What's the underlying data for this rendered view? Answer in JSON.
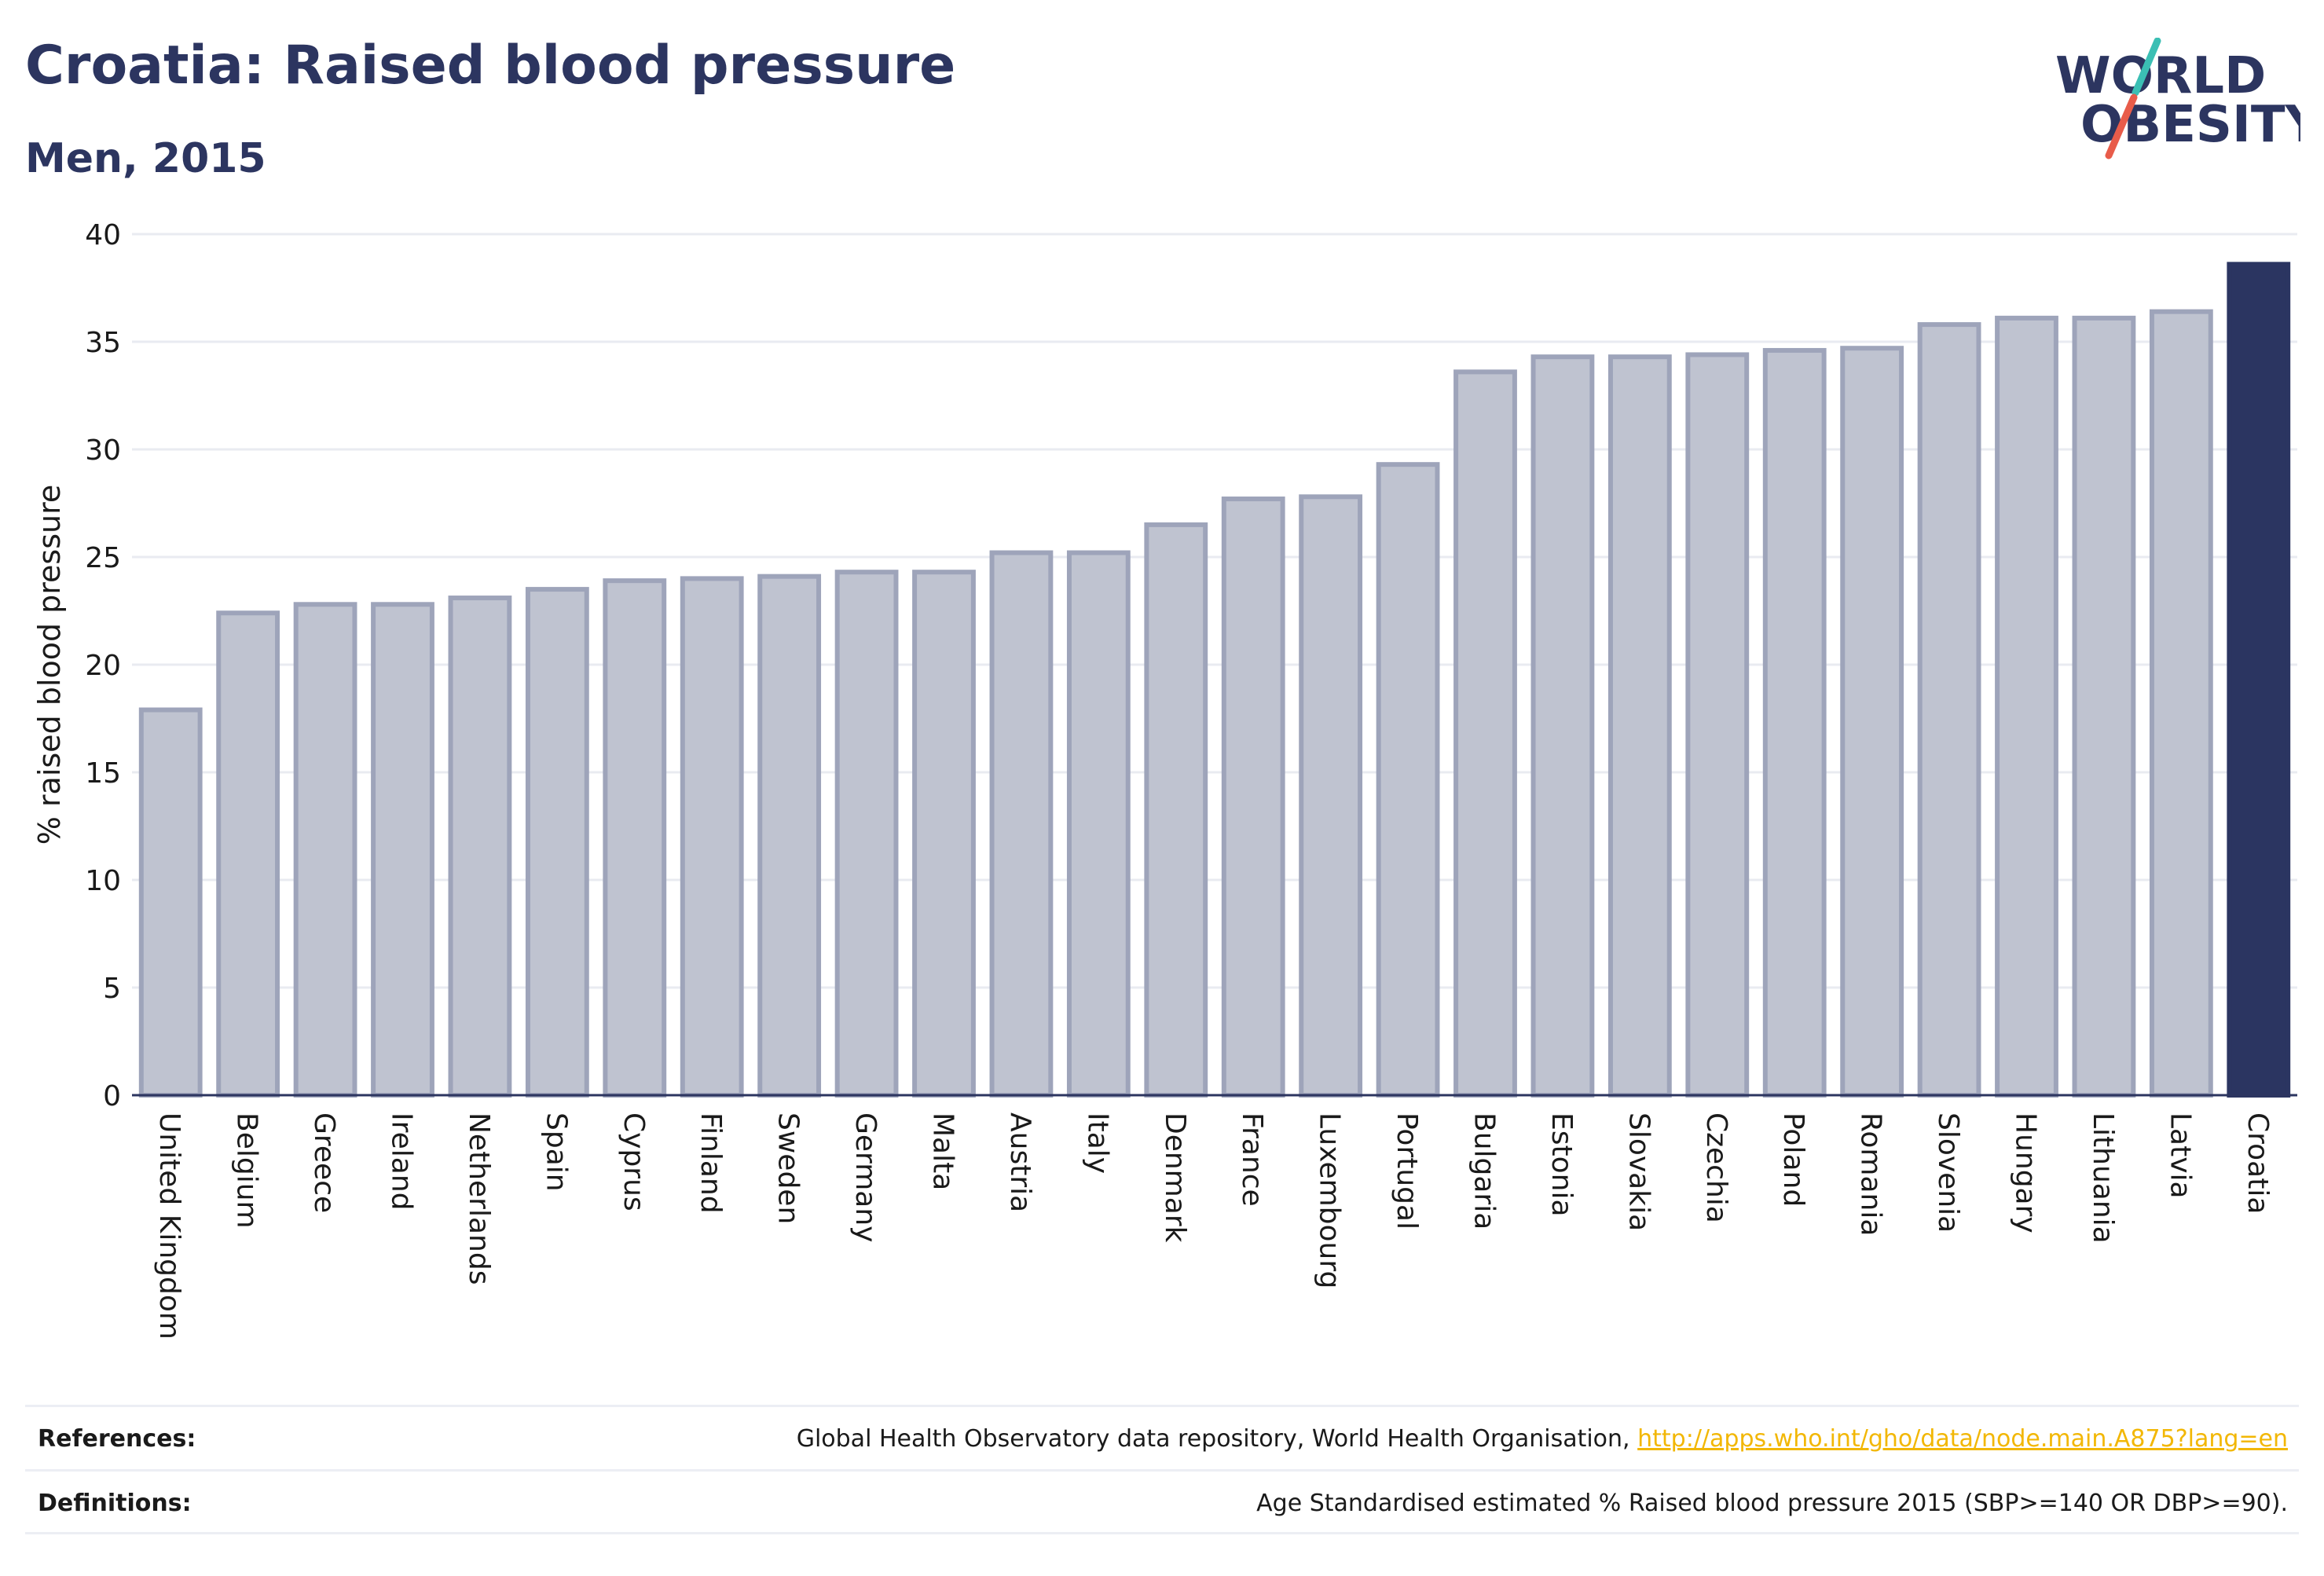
{
  "header": {
    "title": "Croatia: Raised blood pressure",
    "subtitle": "Men, 2015"
  },
  "logo": {
    "line1": "WORLD",
    "line2": "OBESITY"
  },
  "colors": {
    "bar_fill": "#bfc3d0",
    "bar_stroke": "#9ea4ba",
    "highlight": "#2b3561",
    "grid": "#e9ebf1",
    "axis": "#2c3560",
    "link": "#f2b705",
    "logo_teal": "#3bbfb4",
    "logo_red": "#e85c4a"
  },
  "chart_data": {
    "type": "bar",
    "title": "",
    "ylabel": "% raised blood pressure",
    "xlabel": "",
    "ylim": [
      0,
      40
    ],
    "yticks": [
      0,
      5,
      10,
      15,
      20,
      25,
      30,
      35,
      40
    ],
    "grid": true,
    "highlight_category": "Croatia",
    "categories": [
      "United Kingdom",
      "Belgium",
      "Greece",
      "Ireland",
      "Netherlands",
      "Spain",
      "Cyprus",
      "Finland",
      "Sweden",
      "Germany",
      "Malta",
      "Austria",
      "Italy",
      "Denmark",
      "France",
      "Luxembourg",
      "Portugal",
      "Bulgaria",
      "Estonia",
      "Slovakia",
      "Czechia",
      "Poland",
      "Romania",
      "Slovenia",
      "Hungary",
      "Lithuania",
      "Latvia",
      "Croatia"
    ],
    "values": [
      17.9,
      22.4,
      22.8,
      22.8,
      23.1,
      23.5,
      23.9,
      24.0,
      24.1,
      24.3,
      24.3,
      25.2,
      25.2,
      26.5,
      27.7,
      27.8,
      29.3,
      33.6,
      34.3,
      34.3,
      34.4,
      34.6,
      34.7,
      35.8,
      36.1,
      36.1,
      36.4,
      38.6
    ]
  },
  "footer": {
    "references_label": "References:",
    "references_text": "Global Health Observatory data repository, World Health Organisation,",
    "references_link": "http://apps.who.int/gho/data/node.main.A875?lang=en",
    "definitions_label": "Definitions:",
    "definitions_text": "Age Standardised estimated % Raised blood pressure 2015 (SBP>=140 OR DBP>=90)."
  }
}
